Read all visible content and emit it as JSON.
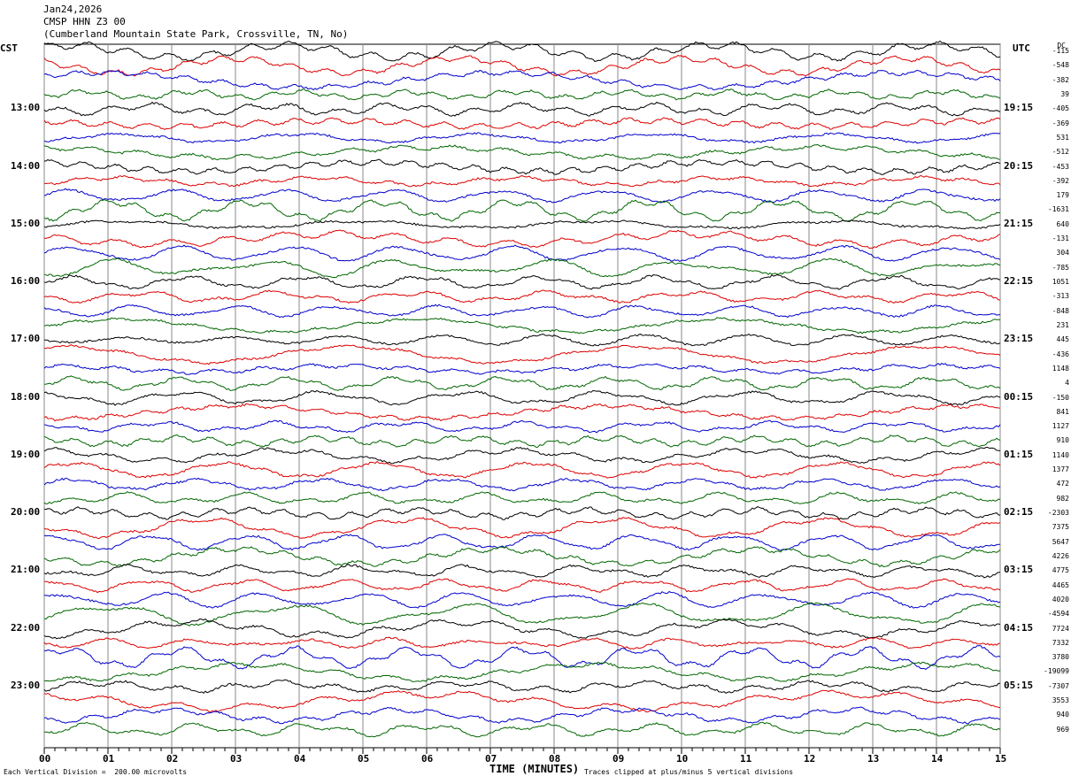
{
  "header": {
    "date": "Jan24,2026",
    "station": "CMSP HHN Z3 00",
    "location": "(Cumberland Mountain State Park, Crossville, TN, No)"
  },
  "left_zone": "CST",
  "right_zone": "UTC",
  "dc_heading": "DC",
  "footer": {
    "x_label": "TIME (MINUTES)",
    "scale_note": "Each Vertical Division =  200.00 microvolts",
    "clip_note": "Traces clipped at plus/minus 5 vertical divisions"
  },
  "chart_data": {
    "type": "line",
    "title": "",
    "x_ticks": [
      "00",
      "01",
      "02",
      "03",
      "04",
      "05",
      "06",
      "07",
      "08",
      "09",
      "10",
      "11",
      "12",
      "13",
      "14",
      "15"
    ],
    "xlim": [
      0,
      15
    ],
    "trace_colors": [
      "#000000",
      "#dd0000",
      "#0000cc",
      "#006600"
    ],
    "local_hours": [
      "13:00",
      "14:00",
      "15:00",
      "16:00",
      "17:00",
      "18:00",
      "19:00",
      "20:00",
      "21:00",
      "22:00",
      "23:00"
    ],
    "utc_hours": [
      "19:15",
      "20:15",
      "21:15",
      "22:15",
      "23:15",
      "00:15",
      "01:15",
      "02:15",
      "03:15",
      "04:15",
      "05:15"
    ],
    "dc_offsets": [
      "-115",
      "-548",
      "-382",
      "39",
      "-405",
      "-369",
      "531",
      "-512",
      "-453",
      "-392",
      "179",
      "-1631",
      "640",
      "-131",
      "304",
      "-785",
      "1051",
      "-313",
      "-848",
      "231",
      "445",
      "-436",
      "1148",
      "4",
      "-150",
      "841",
      "1127",
      "910",
      "1140",
      "1377",
      "472",
      "982",
      "-2303",
      "7375",
      "5647",
      "4226",
      "4775",
      "4465",
      "4020",
      "-4594",
      "7724",
      "7332",
      "3780",
      "-19099",
      "-7307",
      "3553",
      "940",
      "969"
    ],
    "clip_divisions": 5,
    "microvolts_per_division": 200.0
  }
}
